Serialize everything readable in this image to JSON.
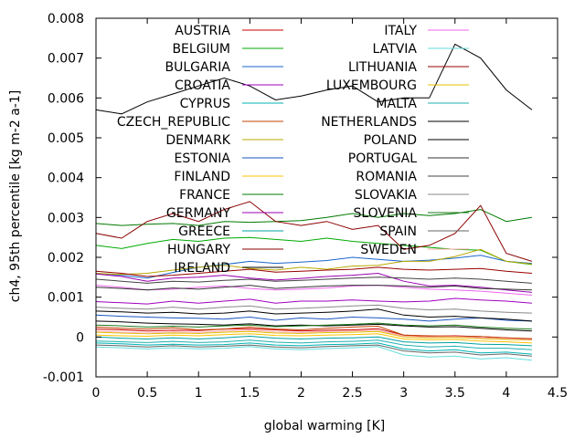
{
  "chart_data": {
    "type": "line",
    "title": "",
    "xlabel": "global warming [K]",
    "ylabel": "ch4, 95th percentile [kg m-2 a-1]",
    "xlim": [
      0,
      4.5
    ],
    "ylim": [
      -0.001,
      0.008
    ],
    "grid": false,
    "legend": "top, two columns",
    "x_ticks": [
      {
        "v": 0,
        "label": "0"
      },
      {
        "v": 0.5,
        "label": "0.5"
      },
      {
        "v": 1,
        "label": "1"
      },
      {
        "v": 1.5,
        "label": "1.5"
      },
      {
        "v": 2,
        "label": "2"
      },
      {
        "v": 2.5,
        "label": "2.5"
      },
      {
        "v": 3,
        "label": "3"
      },
      {
        "v": 3.5,
        "label": "3.5"
      },
      {
        "v": 4,
        "label": "4"
      },
      {
        "v": 4.5,
        "label": "4.5"
      }
    ],
    "y_ticks": [
      {
        "v": -0.001,
        "label": "-0.001"
      },
      {
        "v": 0,
        "label": "0"
      },
      {
        "v": 0.001,
        "label": "0.001"
      },
      {
        "v": 0.002,
        "label": "0.002"
      },
      {
        "v": 0.003,
        "label": "0.003"
      },
      {
        "v": 0.004,
        "label": "0.004"
      },
      {
        "v": 0.005,
        "label": "0.005"
      },
      {
        "v": 0.006,
        "label": "0.006"
      },
      {
        "v": 0.007,
        "label": "0.007"
      },
      {
        "v": 0.008,
        "label": "0.008"
      }
    ],
    "x": [
      0,
      0.25,
      0.5,
      0.75,
      1,
      1.25,
      1.5,
      1.75,
      2,
      2.25,
      2.5,
      2.75,
      3,
      3.25,
      3.5,
      3.75,
      4,
      4.25
    ],
    "series": [
      {
        "name": "AUSTRIA",
        "color": "#cc0000",
        "values": [
          0.0002,
          0.00018,
          0.00015,
          0.00017,
          0.00016,
          0.0002,
          0.00021,
          0.00018,
          0.00015,
          0.00017,
          0.00018,
          0.00021,
          5e-05,
          2e-05,
          3e-05,
          1e-05,
          -2e-05,
          -5e-05
        ]
      },
      {
        "name": "BELGIUM",
        "color": "#00aa00",
        "values": [
          0.0023,
          0.00222,
          0.00235,
          0.00245,
          0.0024,
          0.00248,
          0.0025,
          0.00245,
          0.0024,
          0.00248,
          0.0024,
          0.00235,
          0.0023,
          0.00225,
          0.0022,
          0.00218,
          0.0019,
          0.00182
        ]
      },
      {
        "name": "BULGARIA",
        "color": "#1a66cc",
        "values": [
          0.0016,
          0.00155,
          0.00148,
          0.00162,
          0.00175,
          0.00182,
          0.0019,
          0.00185,
          0.00188,
          0.00192,
          0.002,
          0.00195,
          0.0019,
          0.00193,
          0.00198,
          0.00205,
          0.0019,
          0.00185
        ]
      },
      {
        "name": "CROATIA",
        "color": "#a000c0",
        "values": [
          0.00089,
          0.00086,
          0.00083,
          0.0009,
          0.00085,
          0.0009,
          0.00095,
          0.00085,
          0.0009,
          0.0009,
          0.00093,
          0.0009,
          0.00088,
          0.0009,
          0.00097,
          0.00093,
          0.0009,
          0.00085
        ]
      },
      {
        "name": "CYPRUS",
        "color": "#00b3b3",
        "values": [
          -0.00015,
          -0.00017,
          -0.0002,
          -0.00018,
          -0.0002,
          -0.00019,
          -0.00015,
          -0.0002,
          -0.00022,
          -0.00019,
          -0.00018,
          -0.00015,
          -0.0003,
          -0.00035,
          -0.00032,
          -0.0004,
          -0.00038,
          -0.00043
        ]
      },
      {
        "name": "CZECH_REPUBLIC",
        "color": "#c04000",
        "values": [
          0.00025,
          0.00022,
          0.0002,
          0.00023,
          0.00018,
          0.0002,
          0.00025,
          0.0002,
          0.00018,
          0.00022,
          0.00025,
          0.00027,
          5e-05,
          3e-05,
          2e-05,
          1e-05,
          -2e-05,
          -4e-05
        ]
      },
      {
        "name": "DENMARK",
        "color": "#b8a800",
        "values": [
          0.0016,
          0.00157,
          0.0016,
          0.00168,
          0.00175,
          0.0018,
          0.00172,
          0.00168,
          0.00175,
          0.0017,
          0.00178,
          0.0018,
          0.0019,
          0.0019,
          0.00202,
          0.0022,
          0.0019,
          0.00183
        ]
      },
      {
        "name": "ESTONIA",
        "color": "#1a55c0",
        "values": [
          0.00055,
          0.00052,
          0.0005,
          0.00048,
          0.00047,
          0.00045,
          0.0005,
          0.00042,
          0.00048,
          0.00045,
          0.0005,
          0.00048,
          0.00045,
          0.0004,
          0.00045,
          0.00048,
          0.00042,
          0.0004
        ]
      },
      {
        "name": "FINLAND",
        "color": "#ffc000",
        "values": [
          5e-05,
          3e-05,
          2e-05,
          5e-05,
          3e-05,
          6e-05,
          8e-05,
          4e-05,
          3e-05,
          5e-05,
          6e-05,
          8e-05,
          -5e-05,
          -7e-05,
          -6e-05,
          -0.0001,
          -0.00012,
          -0.00015
        ]
      },
      {
        "name": "FRANCE",
        "color": "#007a00",
        "values": [
          0.00285,
          0.0028,
          0.00283,
          0.00285,
          0.0028,
          0.0029,
          0.00288,
          0.0029,
          0.00292,
          0.003,
          0.0031,
          0.003,
          0.0031,
          0.00305,
          0.0031,
          0.0032,
          0.0029,
          0.003
        ]
      },
      {
        "name": "GERMANY",
        "color": "#9a00b0",
        "values": [
          0.00158,
          0.00152,
          0.0014,
          0.00148,
          0.0015,
          0.00155,
          0.00148,
          0.00143,
          0.00147,
          0.00152,
          0.00155,
          0.0016,
          0.0014,
          0.00128,
          0.0013,
          0.00125,
          0.00118,
          0.00112
        ]
      },
      {
        "name": "GREECE",
        "color": "#00a0a0",
        "values": [
          0.0,
          -3e-05,
          -5e-05,
          -2e-05,
          -5e-05,
          -2e-05,
          2e-05,
          -3e-05,
          -5e-05,
          -3e-05,
          -2e-05,
          0.0,
          -0.00012,
          -0.00015,
          -0.00014,
          -0.00018,
          -0.00019,
          -0.00022
        ]
      },
      {
        "name": "HUNGARY",
        "color": "#8b0000",
        "values": [
          0.0026,
          0.00248,
          0.0029,
          0.0031,
          0.0029,
          0.0032,
          0.0034,
          0.0029,
          0.0028,
          0.0029,
          0.0027,
          0.0028,
          0.0022,
          0.0023,
          0.0026,
          0.0033,
          0.0021,
          0.0019
        ]
      },
      {
        "name": "IRELAND",
        "color": "#000000",
        "values": [
          0.0004,
          0.00038,
          0.00035,
          0.00033,
          0.00032,
          0.0003,
          0.00033,
          0.00028,
          0.0003,
          0.00028,
          0.0003,
          0.00032,
          0.00028,
          0.00025,
          0.00026,
          0.00022,
          0.00018,
          0.00015
        ]
      },
      {
        "name": "ITALY",
        "color": "#ee66ee",
        "values": [
          0.0013,
          0.00125,
          0.00118,
          0.0012,
          0.00125,
          0.00128,
          0.00122,
          0.00118,
          0.0012,
          0.00123,
          0.00128,
          0.0013,
          0.00125,
          0.0012,
          0.00118,
          0.00115,
          0.0011,
          0.00105
        ]
      },
      {
        "name": "LATVIA",
        "color": "#66dddd",
        "values": [
          -0.00025,
          -0.00027,
          -0.0003,
          -0.00027,
          -0.0003,
          -0.00028,
          -0.00024,
          -0.0003,
          -0.00032,
          -0.00029,
          -0.00027,
          -0.00024,
          -0.00045,
          -0.0005,
          -0.00048,
          -0.00055,
          -0.00052,
          -0.00058
        ]
      },
      {
        "name": "LITHUANIA",
        "color": "#990000",
        "values": [
          0.00165,
          0.0016,
          0.00152,
          0.00155,
          0.0016,
          0.00165,
          0.0017,
          0.00163,
          0.00165,
          0.00168,
          0.0017,
          0.00175,
          0.0017,
          0.00168,
          0.0017,
          0.00172,
          0.00165,
          0.0016
        ]
      },
      {
        "name": "LUXEMBOURG",
        "color": "#e0c000",
        "values": [
          0.00012,
          0.0001,
          8e-05,
          0.0001,
          9e-05,
          0.00012,
          0.00014,
          0.0001,
          9e-05,
          0.00011,
          0.00012,
          0.00014,
          0.0,
          -2e-05,
          -1e-05,
          -4e-05,
          -6e-05,
          -8e-05
        ]
      },
      {
        "name": "MALTA",
        "color": "#20b0b0",
        "values": [
          -0.0001,
          -0.00012,
          -0.00014,
          -0.00011,
          -0.00014,
          -0.00012,
          -8e-05,
          -0.00013,
          -0.00015,
          -0.00012,
          -0.00011,
          -8e-05,
          -0.0002,
          -0.00025,
          -0.00023,
          -0.00028,
          -0.00028,
          -0.00032
        ]
      },
      {
        "name": "NETHERLANDS",
        "color": "#000000",
        "values": [
          0.00065,
          0.00063,
          0.0006,
          0.00062,
          0.00058,
          0.0006,
          0.00065,
          0.00058,
          0.0006,
          0.00062,
          0.00065,
          0.0007,
          0.00055,
          0.0005,
          0.00052,
          0.00048,
          0.00045,
          0.0004
        ]
      },
      {
        "name": "POLAND",
        "color": "#000000",
        "values": [
          0.0057,
          0.0056,
          0.0059,
          0.0061,
          0.0063,
          0.0065,
          0.0063,
          0.00595,
          0.00605,
          0.0062,
          0.0063,
          0.0059,
          0.006,
          0.006,
          0.00735,
          0.007,
          0.0062,
          0.0057
        ]
      },
      {
        "name": "PORTUGAL",
        "color": "#333333",
        "values": [
          0.00125,
          0.00122,
          0.00118,
          0.00123,
          0.0012,
          0.00125,
          0.0013,
          0.00122,
          0.00125,
          0.00128,
          0.0013,
          0.0013,
          0.00128,
          0.00125,
          0.00128,
          0.00122,
          0.0012,
          0.00118
        ]
      },
      {
        "name": "ROMANIA",
        "color": "#444444",
        "values": [
          0.00145,
          0.0014,
          0.00135,
          0.0014,
          0.00138,
          0.00142,
          0.00145,
          0.0014,
          0.00142,
          0.00145,
          0.00148,
          0.0015,
          0.00148,
          0.00145,
          0.00148,
          0.00145,
          0.0014,
          0.00135
        ]
      },
      {
        "name": "SLOVAKIA",
        "color": "#888888",
        "values": [
          0.00075,
          0.00072,
          0.0007,
          0.00075,
          0.0007,
          0.00075,
          0.00078,
          0.0007,
          0.00072,
          0.00075,
          0.00078,
          0.0008,
          0.00072,
          0.00068,
          0.0007,
          0.00065,
          0.00062,
          0.0006
        ]
      },
      {
        "name": "SLOVENIA",
        "color": "#1a7a1a",
        "values": [
          0.0003,
          0.00028,
          0.00025,
          0.00027,
          0.00025,
          0.00028,
          0.0003,
          0.00026,
          0.00028,
          0.0003,
          0.00032,
          0.00035,
          0.0003,
          0.00028,
          0.0003,
          0.00025,
          0.00022,
          0.0002
        ]
      },
      {
        "name": "SPAIN",
        "color": "#666666",
        "values": [
          -0.0002,
          -0.00022,
          -0.00025,
          -0.00022,
          -0.00025,
          -0.00023,
          -0.0002,
          -0.00025,
          -0.00027,
          -0.00024,
          -0.00022,
          -0.0002,
          -0.00035,
          -0.0004,
          -0.00038,
          -0.00045,
          -0.00042,
          -0.00048
        ]
      },
      {
        "name": "SWEDEN",
        "color": "#ffaaaa",
        "values": [
          0.00015,
          0.00012,
          0.0001,
          0.00013,
          0.00011,
          0.00015,
          0.00017,
          0.00013,
          0.00011,
          0.00014,
          0.00015,
          0.00017,
          2e-05,
          0.0,
          1e-05,
          -2e-05,
          -4e-05,
          -7e-05
        ]
      }
    ]
  }
}
